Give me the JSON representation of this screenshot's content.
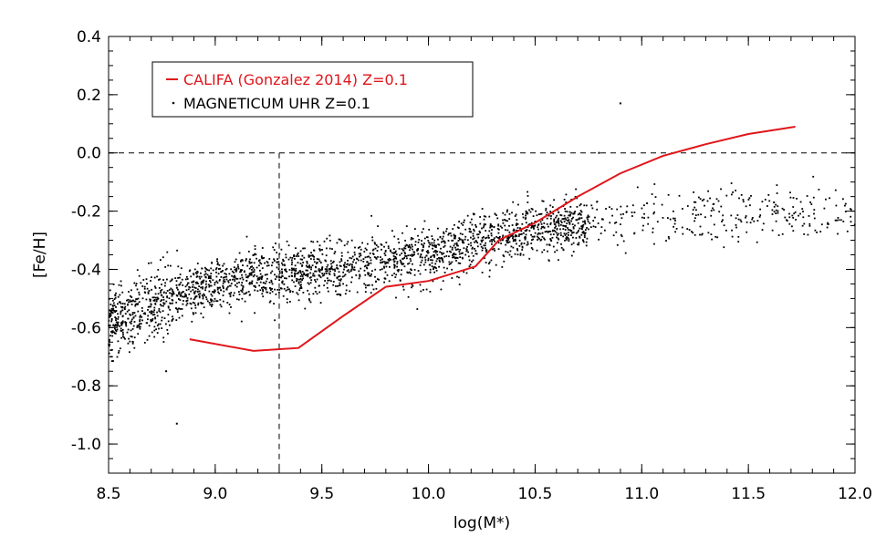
{
  "chart_data": {
    "type": "scatter",
    "xlabel": "log(M*)",
    "ylabel": "[Fe/H]",
    "xlim": [
      8.5,
      12.0
    ],
    "ylim": [
      -1.1,
      0.4
    ],
    "x_ticks": [
      "8.5",
      "9.0",
      "9.5",
      "10.0",
      "10.5",
      "11.0",
      "11.5",
      "12.0"
    ],
    "x_tick_values": [
      8.5,
      9.0,
      9.5,
      10.0,
      10.5,
      11.0,
      11.5,
      12.0
    ],
    "y_ticks": [
      "0.4",
      "0.2",
      "0.0",
      "-0.2",
      "-0.4",
      "-0.6",
      "-0.8",
      "-1.0"
    ],
    "y_tick_values": [
      0.4,
      0.2,
      0.0,
      -0.2,
      -0.4,
      -0.6,
      -0.8,
      -1.0
    ],
    "reference_lines": {
      "horizontal_y": 0.0,
      "vertical_x": 9.3
    },
    "series": [
      {
        "name": "CALIFA (Gonzalez 2014) Z=0.1",
        "kind": "line",
        "color": "#e0161b",
        "x": [
          8.88,
          9.18,
          9.39,
          9.6,
          9.8,
          10.0,
          10.22,
          10.33,
          10.5,
          10.7,
          10.9,
          11.1,
          11.3,
          11.5,
          11.72
        ],
        "y": [
          -0.64,
          -0.68,
          -0.67,
          -0.56,
          -0.46,
          -0.44,
          -0.39,
          -0.3,
          -0.24,
          -0.15,
          -0.07,
          -0.01,
          0.03,
          0.065,
          0.09
        ]
      },
      {
        "name": "MAGNETICUM UHR Z=0.1",
        "kind": "scatter",
        "color": "#000000",
        "trend_x": [
          8.5,
          9.0,
          9.5,
          10.0,
          10.2,
          10.5,
          10.8,
          11.0,
          11.5,
          12.0
        ],
        "trend_y": [
          -0.58,
          -0.45,
          -0.4,
          -0.35,
          -0.3,
          -0.26,
          -0.24,
          -0.23,
          -0.21,
          -0.2
        ],
        "n_points": 2600,
        "outliers": [
          [
            8.82,
            -0.93
          ],
          [
            10.9,
            0.17
          ],
          [
            10.8,
            -0.0
          ],
          [
            11.62,
            -0.17
          ],
          [
            8.77,
            -0.75
          ]
        ]
      }
    ],
    "legend": {
      "placement": "top-left",
      "entries": [
        {
          "label": "CALIFA (Gonzalez 2014) Z=0.1",
          "color": "#e0161b",
          "marker": "line"
        },
        {
          "label": "MAGNETICUM UHR Z=0.1",
          "color": "#000000",
          "marker": "dot"
        }
      ]
    }
  }
}
